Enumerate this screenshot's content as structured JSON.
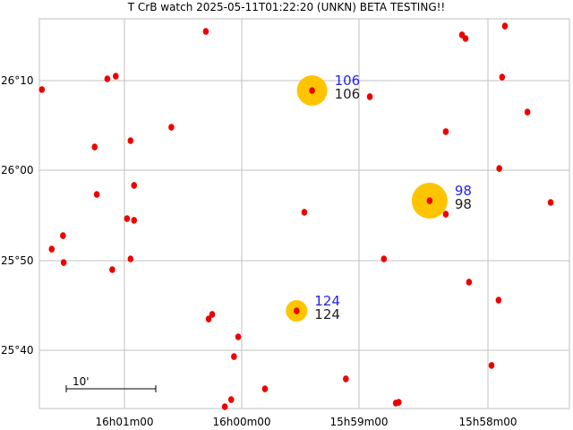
{
  "chart_data": {
    "type": "scatter",
    "title": "T CrB watch 2025-05-11T01:22:20 (UNKN) BETA TESTING!!",
    "x_ticks": [
      "16h01m00",
      "16h00m00",
      "15h59m00",
      "15h58m00"
    ],
    "y_ticks": [
      "26°10",
      "26°00",
      "25°50",
      "25°40"
    ],
    "grid": true,
    "scale_bar": "10'",
    "colors": {
      "star": "#ee0000",
      "variable_halo": "#ffc400",
      "label_blue": "#2222ee",
      "label_black": "#222222",
      "grid": "#c0c0c0"
    },
    "stars": [
      [
        16.0051,
        26.2583
      ],
      [
        15.9687,
        26.2517
      ],
      [
        15.9682,
        26.245
      ],
      [
        15.9626,
        26.2683
      ],
      [
        16.0284,
        26.15
      ],
      [
        16.0191,
        26.17
      ],
      [
        16.0179,
        26.175
      ],
      [
        15.99,
        26.1483
      ],
      [
        15.9818,
        26.1367
      ],
      [
        15.963,
        26.1733
      ],
      [
        15.9594,
        26.1083
      ],
      [
        16.01,
        26.08
      ],
      [
        16.0209,
        26.0433
      ],
      [
        16.0158,
        26.055
      ],
      [
        15.971,
        26.0717
      ],
      [
        15.9634,
        26.0033
      ],
      [
        16.0153,
        25.9717
      ],
      [
        16.0206,
        25.955
      ],
      [
        15.9561,
        25.94
      ],
      [
        15.9733,
        25.9433
      ],
      [
        15.971,
        25.9183
      ],
      [
        16.0163,
        25.91
      ],
      [
        16.0153,
        25.9067
      ],
      [
        15.9911,
        25.9217
      ],
      [
        16.0254,
        25.8783
      ],
      [
        16.027,
        25.8533
      ],
      [
        16.0253,
        25.8283
      ],
      [
        16.0184,
        25.815
      ],
      [
        16.0158,
        25.835
      ],
      [
        15.9798,
        25.835
      ],
      [
        15.9677,
        25.7917
      ],
      [
        15.9635,
        25.7583
      ],
      [
        15.9922,
        25.7383
      ],
      [
        16.0042,
        25.7317
      ],
      [
        16.0047,
        25.7233
      ],
      [
        16.0005,
        25.69
      ],
      [
        16.0011,
        25.6533
      ],
      [
        15.9852,
        25.6117
      ],
      [
        15.9645,
        25.6367
      ],
      [
        15.9967,
        25.5933
      ],
      [
        16.0015,
        25.5733
      ],
      [
        16.0024,
        25.56
      ],
      [
        15.9781,
        25.5667
      ],
      [
        15.9777,
        25.5683
      ]
    ],
    "comparison_stars": [
      {
        "ra": 15.99,
        "dec": 26.1483,
        "label": "106",
        "label2": "106",
        "halo": 17
      },
      {
        "ra": 15.9733,
        "dec": 25.9433,
        "label": "98",
        "label2": "98",
        "halo": 20
      },
      {
        "ra": 15.9922,
        "dec": 25.7383,
        "label": "124",
        "label2": "124",
        "halo": 12
      }
    ]
  }
}
